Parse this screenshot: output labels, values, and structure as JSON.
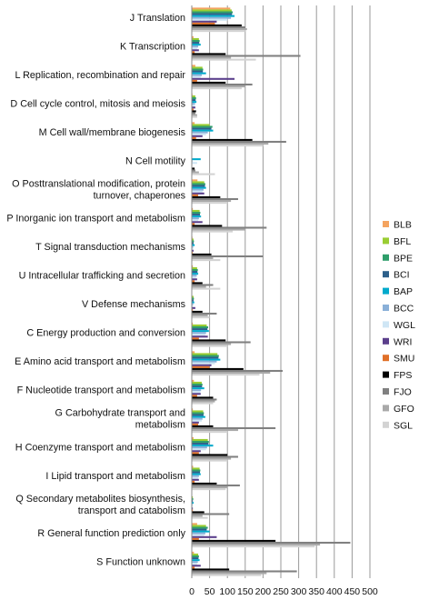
{
  "chart_data": {
    "type": "bar",
    "orientation": "horizontal",
    "title": "",
    "xlabel": "",
    "ylabel": "",
    "xlim": [
      0,
      500
    ],
    "xticks": [
      "0",
      "50",
      "100",
      "150",
      "200",
      "250",
      "300",
      "350",
      "400",
      "450",
      "500"
    ],
    "grid": true,
    "legend_position": "right",
    "categories": [
      [
        "J  Translation"
      ],
      [
        "K  Transcription"
      ],
      [
        "L  Replication, recombination and repair"
      ],
      [
        "D  Cell cycle control, mitosis and meiosis"
      ],
      [
        "M  Cell wall/membrane biogenesis"
      ],
      [
        "N  Cell motility"
      ],
      [
        "O  Posttranslational modification, protein",
        "turnover, chaperones"
      ],
      [
        "P  Inorganic ion transport and metabolism"
      ],
      [
        "T  Signal transduction mechanisms"
      ],
      [
        "U  Intracellular trafficking and secretion"
      ],
      [
        "V  Defense mechanisms"
      ],
      [
        "C  Energy production and conversion"
      ],
      [
        "E  Amino acid transport and metabolism"
      ],
      [
        "F  Nucleotide transport and metabolism"
      ],
      [
        "G  Carbohydrate transport and",
        "metabolism"
      ],
      [
        "H  Coenzyme transport and metabolism"
      ],
      [
        "I  Lipid transport and metabolism"
      ],
      [
        "Q  Secondary metabolites biosynthesis,",
        "transport and catabolism"
      ],
      [
        "R  General function prediction only"
      ],
      [
        "S  Function unknown"
      ]
    ],
    "series": [
      {
        "name": "BLB",
        "color": "#f4a460",
        "values": [
          108,
          5,
          10,
          2,
          8,
          0,
          16,
          3,
          2,
          3,
          1,
          3,
          8,
          6,
          3,
          5,
          4,
          1,
          15,
          6
        ]
      },
      {
        "name": "BFL",
        "color": "#9acd32",
        "values": [
          112,
          20,
          30,
          10,
          50,
          0,
          35,
          22,
          5,
          15,
          5,
          42,
          72,
          28,
          32,
          45,
          22,
          3,
          40,
          18
        ]
      },
      {
        "name": "BPE",
        "color": "#2e9e6a",
        "values": [
          115,
          22,
          32,
          12,
          58,
          0,
          38,
          24,
          6,
          17,
          6,
          46,
          76,
          30,
          34,
          48,
          24,
          4,
          45,
          20
        ]
      },
      {
        "name": "BCI",
        "color": "#2c5f8a",
        "values": [
          113,
          21,
          31,
          11,
          55,
          0,
          37,
          23,
          5,
          16,
          5,
          44,
          75,
          29,
          33,
          47,
          23,
          3,
          42,
          19
        ]
      },
      {
        "name": "BAP",
        "color": "#00aacc",
        "values": [
          120,
          25,
          40,
          13,
          60,
          25,
          40,
          26,
          8,
          18,
          7,
          48,
          80,
          35,
          38,
          60,
          25,
          5,
          50,
          22
        ]
      },
      {
        "name": "BCC",
        "color": "#8ab0d8",
        "values": [
          110,
          18,
          28,
          9,
          45,
          2,
          33,
          20,
          4,
          14,
          4,
          40,
          70,
          26,
          30,
          43,
          20,
          2,
          38,
          17
        ]
      },
      {
        "name": "WGL",
        "color": "#cfe6f5",
        "values": [
          100,
          15,
          25,
          8,
          40,
          15,
          30,
          18,
          4,
          12,
          3,
          38,
          65,
          24,
          28,
          40,
          18,
          2,
          35,
          15
        ]
      },
      {
        "name": "WRI",
        "color": "#5b3f8c",
        "values": [
          70,
          20,
          120,
          10,
          30,
          0,
          35,
          30,
          5,
          15,
          10,
          45,
          55,
          25,
          20,
          25,
          20,
          3,
          70,
          25
        ]
      },
      {
        "name": "SMU",
        "color": "#e07028",
        "values": [
          65,
          8,
          15,
          5,
          12,
          0,
          18,
          8,
          3,
          8,
          3,
          20,
          50,
          15,
          18,
          20,
          8,
          3,
          20,
          8
        ]
      },
      {
        "name": "FPS",
        "color": "#000000",
        "values": [
          140,
          95,
          95,
          12,
          170,
          8,
          80,
          85,
          55,
          30,
          30,
          95,
          145,
          60,
          60,
          100,
          70,
          35,
          235,
          105
        ]
      },
      {
        "name": "FJO",
        "color": "#808080",
        "values": [
          150,
          305,
          170,
          10,
          265,
          10,
          130,
          210,
          200,
          60,
          70,
          165,
          255,
          70,
          235,
          130,
          135,
          105,
          445,
          295
        ]
      },
      {
        "name": "GFO",
        "color": "#a9a9a9",
        "values": [
          155,
          110,
          150,
          15,
          215,
          20,
          110,
          150,
          60,
          40,
          45,
          110,
          220,
          65,
          130,
          110,
          100,
          30,
          360,
          210
        ]
      },
      {
        "name": "SGL",
        "color": "#d3d3d3",
        "values": [
          150,
          180,
          140,
          15,
          200,
          65,
          100,
          115,
          80,
          80,
          50,
          100,
          190,
          60,
          100,
          100,
          95,
          45,
          345,
          195
        ]
      }
    ]
  }
}
